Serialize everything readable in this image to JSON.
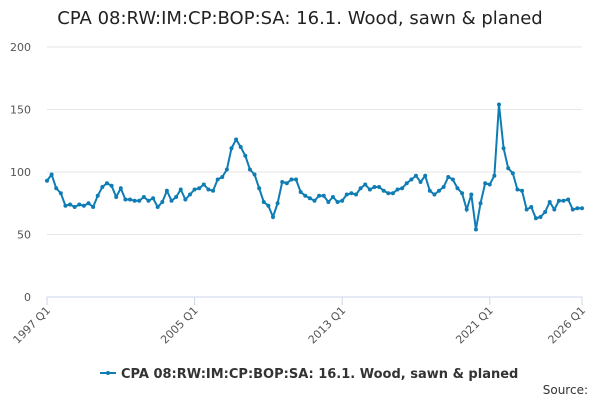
{
  "chart_data": {
    "type": "line",
    "title": "CPA 08:RW:IM:CP:BOP:SA: 16.1. Wood, sawn & planed",
    "source": "Source:",
    "categories": [
      "1997 Q1",
      null,
      null,
      null,
      null,
      null,
      null,
      null,
      null,
      null,
      null,
      null,
      null,
      null,
      null,
      null,
      null,
      null,
      null,
      null,
      null,
      null,
      null,
      null,
      null,
      null,
      null,
      null,
      null,
      null,
      null,
      null,
      "2005 Q1",
      null,
      null,
      null,
      null,
      null,
      null,
      null,
      null,
      null,
      null,
      null,
      null,
      null,
      null,
      null,
      null,
      null,
      null,
      null,
      null,
      null,
      null,
      null,
      null,
      null,
      null,
      null,
      null,
      null,
      null,
      null,
      "2013 Q1",
      null,
      null,
      null,
      null,
      null,
      null,
      null,
      null,
      null,
      null,
      null,
      null,
      null,
      null,
      null,
      null,
      null,
      null,
      null,
      null,
      null,
      null,
      null,
      null,
      null,
      null,
      null,
      null,
      null,
      null,
      null,
      "2021 Q1",
      null,
      null,
      null,
      null,
      null,
      null,
      null,
      null,
      null,
      null,
      null,
      null,
      null,
      null,
      null,
      null,
      null,
      null,
      null,
      "2026 Q1"
    ],
    "series": [
      {
        "name": "CPA 08:RW:IM:CP:BOP:SA: 16.1. Wood, sawn & planed",
        "color": "#0f7db4",
        "values": [
          93,
          98,
          87,
          83,
          73,
          74,
          72,
          74,
          73,
          75,
          72,
          81,
          88,
          91,
          89,
          80,
          87,
          78,
          78,
          77,
          77,
          80,
          77,
          79,
          72,
          76,
          85,
          77,
          80,
          86,
          78,
          82,
          86,
          87,
          90,
          86,
          85,
          94,
          96,
          102,
          119,
          126,
          120,
          113,
          102,
          98,
          87,
          76,
          73,
          64,
          75,
          92,
          91,
          94,
          94,
          84,
          81,
          79,
          77,
          81,
          81,
          76,
          80,
          76,
          77,
          82,
          83,
          82,
          87,
          90,
          86,
          88,
          88,
          85,
          83,
          83,
          86,
          87,
          91,
          94,
          97,
          92,
          97,
          85,
          82,
          85,
          88,
          96,
          94,
          87,
          83,
          70,
          82,
          54,
          75,
          91,
          90,
          97,
          154,
          119,
          103,
          99,
          86,
          85,
          70,
          72,
          63,
          64,
          68,
          76,
          70,
          77,
          77,
          78,
          70,
          71,
          71
        ]
      }
    ],
    "ylim": [
      0,
      200
    ],
    "yticks": [
      0,
      50,
      100,
      150,
      200
    ],
    "grid": true,
    "legend": "bottom"
  }
}
